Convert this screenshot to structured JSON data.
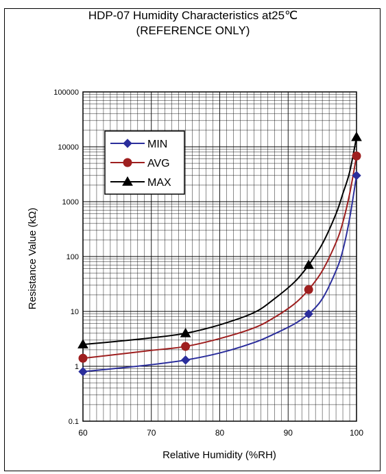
{
  "chart_data": {
    "type": "line",
    "title": "HDP-07 Humidity Characteristics at25℃",
    "subtitle": "(REFERENCE ONLY)",
    "xlabel": "Relative Humidity (%RH)",
    "ylabel": "Resistance Value (kΩ)",
    "xlim": [
      60,
      100
    ],
    "ylim": [
      0.1,
      100000
    ],
    "yscale": "log",
    "x_ticks": [
      60,
      70,
      80,
      90,
      100
    ],
    "y_ticks": [
      "0.1",
      "1",
      "10",
      "100",
      "1000",
      "10000",
      "100000"
    ],
    "grid": true,
    "legend_position": "top-left",
    "series": [
      {
        "name": "MIN",
        "marker": "diamond",
        "color": "#2b2e9c",
        "points": [
          [
            60,
            0.8
          ],
          [
            75,
            1.3
          ],
          [
            93,
            9
          ],
          [
            100,
            3000
          ]
        ],
        "curve": [
          [
            60,
            0.8
          ],
          [
            65,
            0.92
          ],
          [
            70,
            1.07
          ],
          [
            75,
            1.3
          ],
          [
            80,
            1.75
          ],
          [
            85,
            2.7
          ],
          [
            88,
            3.9
          ],
          [
            91,
            6.0
          ],
          [
            93,
            9
          ],
          [
            95,
            17
          ],
          [
            97,
            55
          ],
          [
            98,
            130
          ],
          [
            99,
            500
          ],
          [
            100,
            3000
          ]
        ]
      },
      {
        "name": "AVG",
        "marker": "circle",
        "color": "#9e1f1f",
        "points": [
          [
            60,
            1.4
          ],
          [
            75,
            2.3
          ],
          [
            93,
            25
          ],
          [
            100,
            6800
          ]
        ],
        "curve": [
          [
            60,
            1.4
          ],
          [
            65,
            1.65
          ],
          [
            70,
            1.95
          ],
          [
            75,
            2.3
          ],
          [
            80,
            3.2
          ],
          [
            85,
            5.0
          ],
          [
            88,
            7.8
          ],
          [
            91,
            14
          ],
          [
            93,
            25
          ],
          [
            95,
            55
          ],
          [
            97,
            180
          ],
          [
            98,
            420
          ],
          [
            99,
            1400
          ],
          [
            100,
            6800
          ]
        ]
      },
      {
        "name": "MAX",
        "marker": "triangle",
        "color": "#000000",
        "points": [
          [
            60,
            2.5
          ],
          [
            75,
            4.0
          ],
          [
            93,
            70
          ],
          [
            100,
            15000
          ]
        ],
        "curve": [
          [
            60,
            2.5
          ],
          [
            65,
            2.85
          ],
          [
            70,
            3.3
          ],
          [
            75,
            4.0
          ],
          [
            80,
            5.7
          ],
          [
            85,
            9.5
          ],
          [
            88,
            17
          ],
          [
            91,
            35
          ],
          [
            93,
            70
          ],
          [
            95,
            170
          ],
          [
            97,
            600
          ],
          [
            98,
            1400
          ],
          [
            99,
            3500
          ],
          [
            100,
            15000
          ]
        ]
      }
    ]
  }
}
